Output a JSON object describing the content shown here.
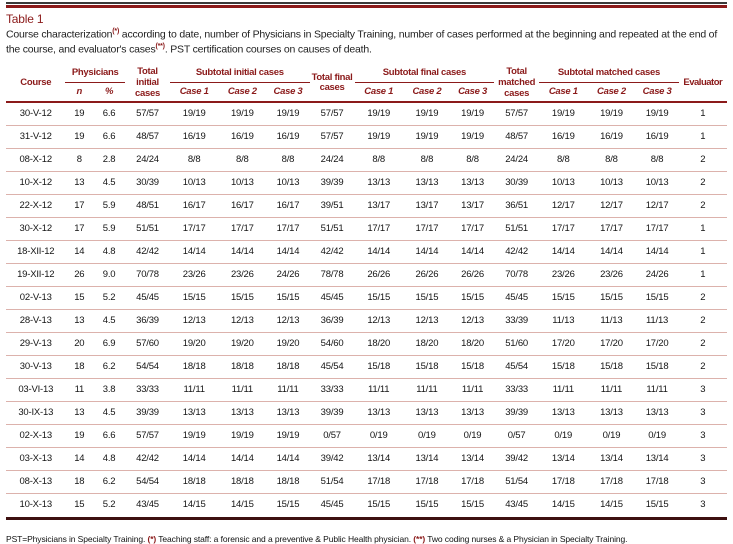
{
  "page": {
    "title": "Table 1",
    "caption": {
      "part1": "Course characterization",
      "marker1": "(*)",
      "part2": " according to date, number of Physicians in Specialty Training, number of cases performed at the beginning and repeated at the end of the course, and evaluator's cases",
      "marker2": "(**)",
      "part3": ". PST certification courses on causes of death."
    },
    "footnote": {
      "part1": "PST=Physicians in Specialty Training. ",
      "marker1": "(*)",
      "part2": " Teaching staff: a forensic and a preventive & Public Health physician. ",
      "marker2": "(**)",
      "part3": " Two coding nurses & a Physician in Specialty Training."
    }
  },
  "colors": {
    "accent_maroon": "#8b1a1a",
    "row_divider": "#dcb2ac",
    "bottom_rule": "#3d1010"
  },
  "table": {
    "header": {
      "course": "Course",
      "physicians_group": "Physicians",
      "n": "n",
      "pct": "%",
      "total_initial": "Total initial cases",
      "subtotal_initial_group": "Subtotal initial cases",
      "total_final": "Total final cases",
      "subtotal_final_group": "Subtotal final cases",
      "total_matched": "Total matched cases",
      "subtotal_matched_group": "Subtotal matched cases",
      "case1": "Case 1",
      "case2": "Case 2",
      "case3": "Case 3",
      "evaluator": "Evaluator"
    },
    "column_keys": [
      "course",
      "n",
      "pct",
      "total-initial",
      "initial-case1",
      "initial-case2",
      "initial-case3",
      "total-final",
      "final-case1",
      "final-case2",
      "final-case3",
      "total-matched",
      "matched-case1",
      "matched-case2",
      "matched-case3",
      "evaluator"
    ],
    "rows": [
      [
        "30-V-12",
        "19",
        "6.6",
        "57/57",
        "19/19",
        "19/19",
        "19/19",
        "57/57",
        "19/19",
        "19/19",
        "19/19",
        "57/57",
        "19/19",
        "19/19",
        "19/19",
        "1"
      ],
      [
        "31-V-12",
        "19",
        "6.6",
        "48/57",
        "16/19",
        "16/19",
        "16/19",
        "57/57",
        "19/19",
        "19/19",
        "19/19",
        "48/57",
        "16/19",
        "16/19",
        "16/19",
        "1"
      ],
      [
        "08-X-12",
        "8",
        "2.8",
        "24/24",
        "8/8",
        "8/8",
        "8/8",
        "24/24",
        "8/8",
        "8/8",
        "8/8",
        "24/24",
        "8/8",
        "8/8",
        "8/8",
        "2"
      ],
      [
        "10-X-12",
        "13",
        "4.5",
        "30/39",
        "10/13",
        "10/13",
        "10/13",
        "39/39",
        "13/13",
        "13/13",
        "13/13",
        "30/39",
        "10/13",
        "10/13",
        "10/13",
        "2"
      ],
      [
        "22-X-12",
        "17",
        "5.9",
        "48/51",
        "16/17",
        "16/17",
        "16/17",
        "39/51",
        "13/17",
        "13/17",
        "13/17",
        "36/51",
        "12/17",
        "12/17",
        "12/17",
        "2"
      ],
      [
        "30-X-12",
        "17",
        "5.9",
        "51/51",
        "17/17",
        "17/17",
        "17/17",
        "51/51",
        "17/17",
        "17/17",
        "17/17",
        "51/51",
        "17/17",
        "17/17",
        "17/17",
        "1"
      ],
      [
        "18-XII-12",
        "14",
        "4.8",
        "42/42",
        "14/14",
        "14/14",
        "14/14",
        "42/42",
        "14/14",
        "14/14",
        "14/14",
        "42/42",
        "14/14",
        "14/14",
        "14/14",
        "1"
      ],
      [
        "19-XII-12",
        "26",
        "9.0",
        "70/78",
        "23/26",
        "23/26",
        "24/26",
        "78/78",
        "26/26",
        "26/26",
        "26/26",
        "70/78",
        "23/26",
        "23/26",
        "24/26",
        "1"
      ],
      [
        "02-V-13",
        "15",
        "5.2",
        "45/45",
        "15/15",
        "15/15",
        "15/15",
        "45/45",
        "15/15",
        "15/15",
        "15/15",
        "45/45",
        "15/15",
        "15/15",
        "15/15",
        "2"
      ],
      [
        "28-V-13",
        "13",
        "4.5",
        "36/39",
        "12/13",
        "12/13",
        "12/13",
        "36/39",
        "12/13",
        "12/13",
        "12/13",
        "33/39",
        "11/13",
        "11/13",
        "11/13",
        "2"
      ],
      [
        "29-V-13",
        "20",
        "6.9",
        "57/60",
        "19/20",
        "19/20",
        "19/20",
        "54/60",
        "18/20",
        "18/20",
        "18/20",
        "51/60",
        "17/20",
        "17/20",
        "17/20",
        "2"
      ],
      [
        "30-V-13",
        "18",
        "6.2",
        "54/54",
        "18/18",
        "18/18",
        "18/18",
        "45/54",
        "15/18",
        "15/18",
        "15/18",
        "45/54",
        "15/18",
        "15/18",
        "15/18",
        "2"
      ],
      [
        "03-VI-13",
        "11",
        "3.8",
        "33/33",
        "11/11",
        "11/11",
        "11/11",
        "33/33",
        "11/11",
        "11/11",
        "11/11",
        "33/33",
        "11/11",
        "11/11",
        "11/11",
        "3"
      ],
      [
        "30-IX-13",
        "13",
        "4.5",
        "39/39",
        "13/13",
        "13/13",
        "13/13",
        "39/39",
        "13/13",
        "13/13",
        "13/13",
        "39/39",
        "13/13",
        "13/13",
        "13/13",
        "3"
      ],
      [
        "02-X-13",
        "19",
        "6.6",
        "57/57",
        "19/19",
        "19/19",
        "19/19",
        "0/57",
        "0/19",
        "0/19",
        "0/19",
        "0/57",
        "0/19",
        "0/19",
        "0/19",
        "3"
      ],
      [
        "03-X-13",
        "14",
        "4.8",
        "42/42",
        "14/14",
        "14/14",
        "14/14",
        "39/42",
        "13/14",
        "13/14",
        "13/14",
        "39/42",
        "13/14",
        "13/14",
        "13/14",
        "3"
      ],
      [
        "08-X-13",
        "18",
        "6.2",
        "54/54",
        "18/18",
        "18/18",
        "18/18",
        "51/54",
        "17/18",
        "17/18",
        "17/18",
        "51/54",
        "17/18",
        "17/18",
        "17/18",
        "3"
      ],
      [
        "10-X-13",
        "15",
        "5.2",
        "43/45",
        "14/15",
        "14/15",
        "15/15",
        "45/45",
        "15/15",
        "15/15",
        "15/15",
        "43/45",
        "14/15",
        "14/15",
        "15/15",
        "3"
      ]
    ]
  }
}
